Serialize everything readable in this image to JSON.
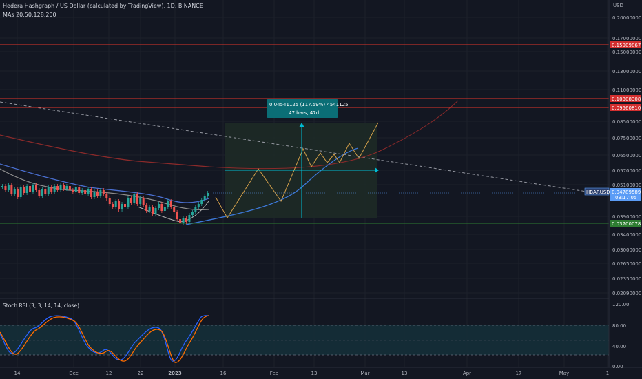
{
  "header": {
    "title": "Hedera Hashgraph / US Dollar (calculated by TradingView), 1D, BINANCE",
    "mas": "MAs 20,50,128,200"
  },
  "axis": {
    "currency": "USD",
    "price_ticks": [
      "0.20000000",
      "0.17000000",
      "0.15000000",
      "0.13000000",
      "0.11000000",
      "0.08500000",
      "0.07500000",
      "0.06500000",
      "0.05700000",
      "0.05100000",
      "0.03900000",
      "0.03400000",
      "0.03000000",
      "0.02650000",
      "0.02350000",
      "0.02090000"
    ],
    "date_ticks": [
      "14",
      "Dec",
      "12",
      "22",
      "2023",
      "16",
      "Feb",
      "13",
      "Mar",
      "13",
      "Apr",
      "17",
      "May",
      "1"
    ]
  },
  "levels": {
    "red_1": "0.15909867",
    "red_2": "0.10308308",
    "red_3": "0.09560810",
    "green": "0.03700078"
  },
  "symbol_tag": {
    "name": "HBARUSD",
    "price": "0.04789589",
    "countdown": "03:17:05"
  },
  "measure": {
    "line1": "0.04541125 (117.59%) 4541125",
    "line2": "47 bars, 47d"
  },
  "rsi": {
    "title": "Stoch RSI (3, 3, 14, 14, close)",
    "ticks": [
      "120.00",
      "80.00",
      "40.00",
      "0.00"
    ]
  },
  "colors": {
    "bg": "#131722",
    "up": "#26a69a",
    "down": "#ef5350",
    "red_line": "#e0352b",
    "green_line": "#2e7d32",
    "blue_tag": "#5b9cf6",
    "teal_box": "#0b6e76"
  }
}
